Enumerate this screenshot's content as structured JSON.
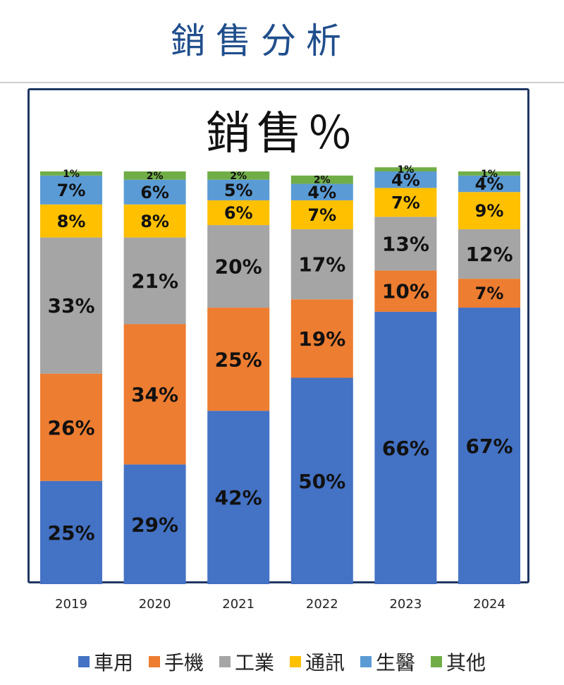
{
  "page": {
    "title": "銷售分析"
  },
  "chart_data": {
    "type": "bar",
    "stacked": true,
    "title": "銷售％",
    "categories": [
      "2019",
      "2020",
      "2021",
      "2022",
      "2023",
      "2024"
    ],
    "ylim": [
      0,
      100
    ],
    "legend_position": "bottom",
    "series": [
      {
        "name": "車用",
        "color": "#4472c4",
        "values": [
          25,
          29,
          42,
          50,
          66,
          67
        ],
        "labels": [
          "25%",
          "29%",
          "42%",
          "50%",
          "66%",
          "67%"
        ]
      },
      {
        "name": "手機",
        "color": "#ed7d31",
        "values": [
          26,
          34,
          25,
          19,
          10,
          7
        ],
        "labels": [
          "26%",
          "34%",
          "25%",
          "19%",
          "10%",
          "7%"
        ]
      },
      {
        "name": "工業",
        "color": "#a5a5a5",
        "values": [
          33,
          21,
          20,
          17,
          13,
          12
        ],
        "labels": [
          "33%",
          "21%",
          "20%",
          "17%",
          "13%",
          "12%"
        ]
      },
      {
        "name": "通訊",
        "color": "#ffc000",
        "values": [
          8,
          8,
          6,
          7,
          7,
          9
        ],
        "labels": [
          "8%",
          "8%",
          "6%",
          "7%",
          "7%",
          "9%"
        ]
      },
      {
        "name": "生醫",
        "color": "#5b9bd5",
        "values": [
          7,
          6,
          5,
          4,
          4,
          4
        ],
        "labels": [
          "7%",
          "6%",
          "5%",
          "4%",
          "4%",
          "4%"
        ]
      },
      {
        "name": "其他",
        "color": "#70ad47",
        "values": [
          1,
          2,
          2,
          2,
          1,
          1
        ],
        "labels": [
          "1%",
          "2%",
          "2%",
          "2%",
          "1%",
          "1%"
        ]
      }
    ]
  }
}
